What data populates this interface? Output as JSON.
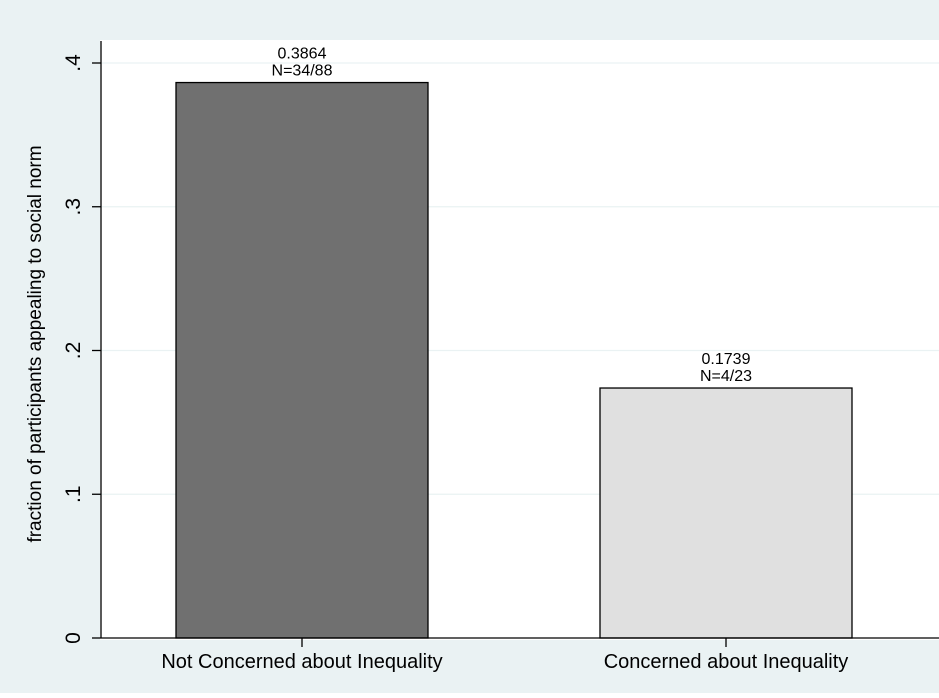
{
  "chart_data": {
    "type": "bar",
    "categories": [
      "Not Concerned about Inequality",
      "Concerned about Inequality"
    ],
    "values": [
      0.3864,
      0.1739
    ],
    "bar_labels": [
      [
        "0.3864",
        "N=34/88"
      ],
      [
        "0.1739",
        "N=4/23"
      ]
    ],
    "ylabel": "fraction of participants appealing to social norm",
    "xlabel": "",
    "ylim": [
      0,
      0.4
    ],
    "yticks": [
      0,
      0.1,
      0.2,
      0.3,
      0.4
    ],
    "ytick_labels": [
      "0",
      ".1",
      ".2",
      ".3",
      ".4"
    ],
    "grid": true,
    "colors": {
      "outer_background": "#EAF2F3",
      "plot_background": "#FFFFFF",
      "gridline": "#EAF2F3",
      "bar_fills": [
        "#707070",
        "#E0E0E0"
      ],
      "bar_stroke": "#000000"
    }
  }
}
